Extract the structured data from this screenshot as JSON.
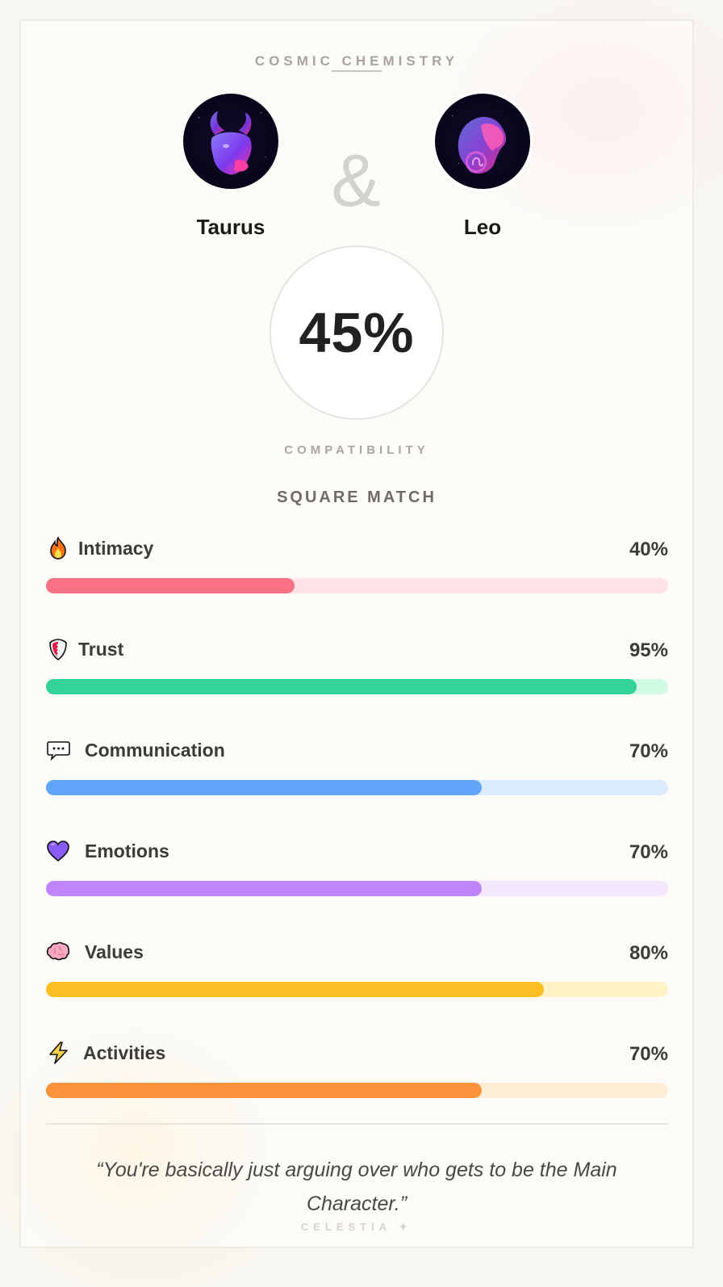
{
  "header": {
    "eyebrow": "COSMIC CHEMISTRY",
    "ampersand": "&"
  },
  "signs": [
    {
      "name": "Taurus",
      "icon": "taurus-bull-avatar"
    },
    {
      "name": "Leo",
      "icon": "leo-lion-avatar"
    }
  ],
  "score": {
    "value": "45%",
    "label": "COMPATIBILITY",
    "match_type": "SQUARE MATCH"
  },
  "metrics": [
    {
      "label": "Intimacy",
      "value": "40%",
      "percent": 40,
      "icon": "fire-icon",
      "color": "#fb7185",
      "track": "#fde3e7"
    },
    {
      "label": "Trust",
      "value": "95%",
      "percent": 95,
      "icon": "shield-icon",
      "color": "#34d399",
      "track": "#d1fae5"
    },
    {
      "label": "Communication",
      "value": "70%",
      "percent": 70,
      "icon": "speech-bubble-icon",
      "color": "#60a5fa",
      "track": "#dbeafe"
    },
    {
      "label": "Emotions",
      "value": "70%",
      "percent": 70,
      "icon": "purple-heart-icon",
      "color": "#c084fc",
      "track": "#f3e8ff"
    },
    {
      "label": "Values",
      "value": "80%",
      "percent": 80,
      "icon": "brain-icon",
      "color": "#fbbf24",
      "track": "#fef3c7"
    },
    {
      "label": "Activities",
      "value": "70%",
      "percent": 70,
      "icon": "lightning-icon",
      "color": "#fb923c",
      "track": "#ffedd5"
    }
  ],
  "quote": "“You're basically just arguing over who gets to be the Main Character.”",
  "brand": "CELESTIA ✦"
}
